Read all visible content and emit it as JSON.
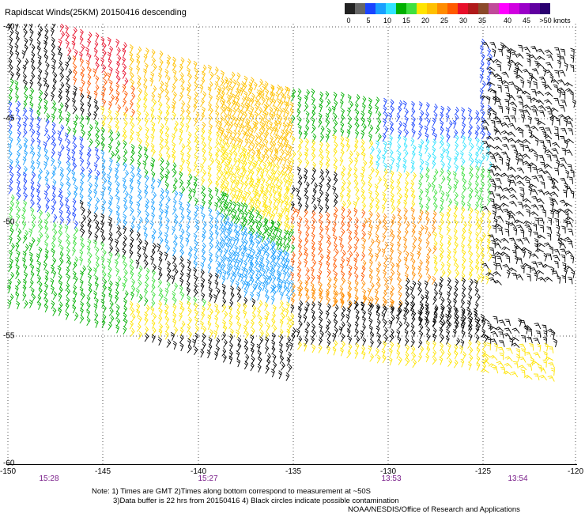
{
  "title": "Rapidscat Winds(25KM) 20150416 descending",
  "colorbar": {
    "colors": [
      "#222222",
      "#666666",
      "#1a44ff",
      "#1a9fff",
      "#31e3ff",
      "#00b000",
      "#3fe03f",
      "#ffe400",
      "#ffc000",
      "#ff8c00",
      "#ff5a00",
      "#e80f2a",
      "#b01a1a",
      "#8b4a2a",
      "#c04a9a",
      "#ff00ff",
      "#d000e0",
      "#9a00c8",
      "#6000a0",
      "#2a0070"
    ],
    "labels": [
      "0",
      "5",
      "10",
      "15",
      "20",
      "25",
      "30",
      "35",
      "40",
      "45",
      ">50 knots"
    ]
  },
  "map": {
    "lon_labels": [
      "-150",
      "-145",
      "-140",
      "-135",
      "-130",
      "-125",
      "-120"
    ],
    "lat_labels": [
      "-40",
      "-45",
      "-50",
      "-55",
      "-60"
    ],
    "lon_range": [
      -150,
      -120
    ],
    "lat_range": [
      -40,
      -60
    ],
    "grid": "dotted",
    "time_labels": [
      "15:28",
      "15:27",
      "13:53",
      "13:54"
    ]
  },
  "notes": [
    "Note: 1) Times are GMT 2)Times along bottom correspond to measurement at ~50S",
    "3)Data buffer is 22 hrs from 20150416 4) Black circles indicate possible contamination",
    "NOAA/NESDIS/Office of Research and Applications"
  ],
  "barb_colors": {
    "black": "#000000",
    "blue": "#1a44ff",
    "lightblue": "#1a9fff",
    "cyan": "#31e3ff",
    "green": "#00b000",
    "lightgreen": "#3fe03f",
    "yellow": "#ffe400",
    "gold": "#ffc000",
    "orange": "#ff8c00",
    "darkorange": "#ff5a00",
    "red": "#e80f2a"
  }
}
